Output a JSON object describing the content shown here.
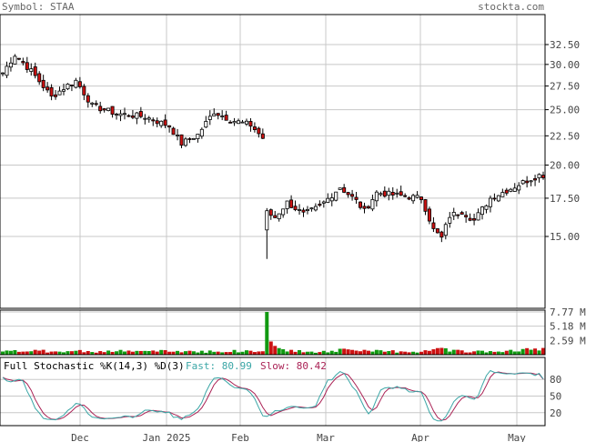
{
  "header": {
    "symbol_label": "Symbol: STAA",
    "site": "stockta.com"
  },
  "colors": {
    "up": "#ffffff",
    "down": "#cc1111",
    "vol_up": "#119911",
    "vol_down": "#cc1111",
    "grid": "#c8c8c8",
    "fast": "#3aa6a6",
    "slow": "#aa2255",
    "frame": "#000000"
  },
  "months": [
    "Dec",
    "Jan 2025",
    "Feb",
    "Mar",
    "Apr",
    "May"
  ],
  "price_axis": {
    "ticks": [
      "32.50",
      "30.00",
      "27.50",
      "25.00",
      "22.50",
      "20.00",
      "17.50",
      "15.00"
    ],
    "scale": "log"
  },
  "volume_axis": {
    "ticks": [
      "7.77 M",
      "5.18 M",
      "2.59 M"
    ]
  },
  "stochastic": {
    "title": "Full Stochastic %K(14,3) %D(3)",
    "fast_label": "Fast: 80.99",
    "slow_label": "Slow: 80.42",
    "ticks": [
      "80",
      "50",
      "20"
    ]
  },
  "chart_data": {
    "type": "candlestick",
    "symbol": "STAA",
    "month_labels": [
      "Dec",
      "Jan 2025",
      "Feb",
      "Mar",
      "Apr",
      "May"
    ],
    "close_keypoints": [
      {
        "day": 0,
        "close": 29.0
      },
      {
        "day": 3,
        "close": 31.2
      },
      {
        "day": 7,
        "close": 29.2
      },
      {
        "day": 12,
        "close": 26.3
      },
      {
        "day": 16,
        "close": 27.6
      },
      {
        "day": 18,
        "close": 28.1
      },
      {
        "day": 22,
        "close": 25.4
      },
      {
        "day": 28,
        "close": 24.6
      },
      {
        "day": 35,
        "close": 24.3
      },
      {
        "day": 41,
        "close": 23.4
      },
      {
        "day": 44,
        "close": 21.8
      },
      {
        "day": 48,
        "close": 22.6
      },
      {
        "day": 52,
        "close": 24.8
      },
      {
        "day": 56,
        "close": 24.0
      },
      {
        "day": 61,
        "close": 23.5
      },
      {
        "day": 64,
        "close": 22.3
      },
      {
        "day": 65,
        "close": 16.5
      },
      {
        "day": 67,
        "close": 16.2
      },
      {
        "day": 70,
        "close": 17.2
      },
      {
        "day": 74,
        "close": 16.4
      },
      {
        "day": 78,
        "close": 16.9
      },
      {
        "day": 83,
        "close": 18.3
      },
      {
        "day": 87,
        "close": 17.3
      },
      {
        "day": 89,
        "close": 16.6
      },
      {
        "day": 92,
        "close": 17.9
      },
      {
        "day": 97,
        "close": 17.7
      },
      {
        "day": 103,
        "close": 17.5
      },
      {
        "day": 106,
        "close": 15.4
      },
      {
        "day": 108,
        "close": 14.9
      },
      {
        "day": 110,
        "close": 16.3
      },
      {
        "day": 113,
        "close": 16.6
      },
      {
        "day": 116,
        "close": 16.0
      },
      {
        "day": 120,
        "close": 17.5
      },
      {
        "day": 125,
        "close": 18.2
      },
      {
        "day": 129,
        "close": 18.8
      },
      {
        "day": 132,
        "close": 19.2
      }
    ],
    "days": 134,
    "volume_spike": {
      "day": 65,
      "value": 7.77
    },
    "volume_max": 7.77,
    "stoch_fast_last": 80.99,
    "stoch_slow_last": 80.42,
    "stoch_levels": [
      80,
      50,
      20
    ]
  }
}
